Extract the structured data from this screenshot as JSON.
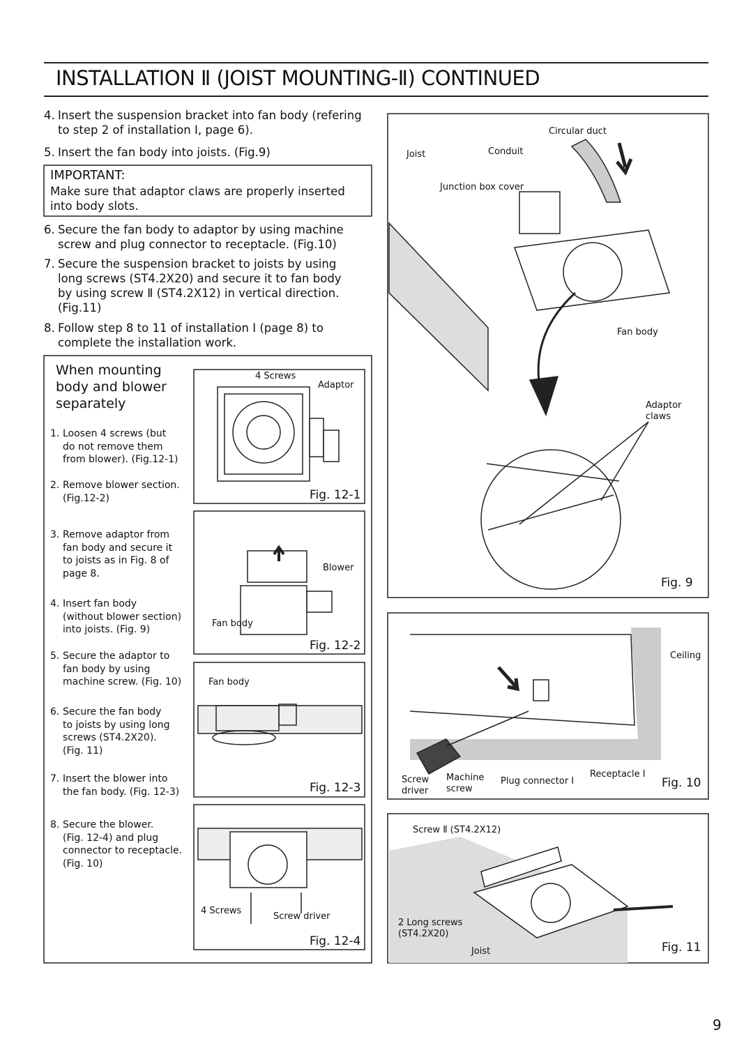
{
  "header": {
    "title": "INSTALLATION Ⅱ (JOIST MOUNTING-Ⅱ) CONTINUED"
  },
  "steps": [
    {
      "number": "4.",
      "text": "Insert the suspension bracket into fan body (refering\nto step 2 of installation Ⅰ, page 6)."
    },
    {
      "number": "5.",
      "text": "Insert the fan body into joists. (Fig.9)"
    }
  ],
  "important": {
    "label": "IMPORTANT:",
    "text": "Make sure that adaptor claws are properly inserted\ninto body slots."
  },
  "steps_after": [
    {
      "number": "6.",
      "text": "Secure the fan body to adaptor by using machine\nscrew and plug connector to receptacle. (Fig.10)"
    },
    {
      "number": "7.",
      "text": "Secure the suspension bracket to joists by using\nlong screws (ST4.2X20) and secure it to fan body\nby using screw Ⅱ (ST4.2X12) in vertical direction.\n(Fig.11)"
    },
    {
      "number": "8.",
      "text": "Follow step 8 to 11 of installation Ⅰ (page 8) to\ncomplete the installation work."
    }
  ],
  "separate": {
    "title": "When mounting\nbody and blower\nseparately",
    "steps": [
      {
        "number": "1.",
        "text": "Loosen 4 screws (but\ndo not remove them\nfrom blower). (Fig.12-1)"
      },
      {
        "number": "2.",
        "text": "Remove blower section.\n(Fig.12-2)"
      },
      {
        "number": "3.",
        "text": "Remove adaptor from\nfan body and secure it\nto joists as in Fig. 8 of\npage 8."
      },
      {
        "number": "4.",
        "text": "Insert fan body\n(without blower section)\ninto joists. (Fig. 9)"
      },
      {
        "number": "5.",
        "text": "Secure the adaptor to\nfan body by using\nmachine screw. (Fig. 10)"
      },
      {
        "number": "6.",
        "text": "Secure the fan body\nto joists by using long\nscrews (ST4.2X20).\n(Fig. 11)"
      },
      {
        "number": "7.",
        "text": "Insert the blower into\nthe fan body. (Fig. 12-3)"
      },
      {
        "number": "8.",
        "text": "Secure the blower.\n(Fig. 12-4) and plug\nconnector to receptacle.\n(Fig. 10)"
      }
    ],
    "figures": [
      {
        "caption": "Fig. 12-1",
        "labels": [
          "4 Screws",
          "Adaptor"
        ]
      },
      {
        "caption": "Fig. 12-2",
        "labels": [
          "Blower",
          "Fan body"
        ]
      },
      {
        "caption": "Fig. 12-3",
        "labels": [
          "Fan body"
        ]
      },
      {
        "caption": "Fig. 12-4",
        "labels": [
          "4 Screws",
          "Screw driver"
        ]
      }
    ]
  },
  "figures": [
    {
      "caption": "Fig. 9",
      "labels": [
        "Circular duct",
        "Joist",
        "Conduit",
        "Junction box cover",
        "Fan body",
        "Adaptor\nclaws"
      ]
    },
    {
      "caption": "Fig. 10",
      "labels": [
        "Ceiling",
        "Screw\ndriver",
        "Machine\nscrew",
        "Plug connector Ⅰ",
        "Receptacle Ⅰ"
      ]
    },
    {
      "caption": "Fig. 11",
      "labels": [
        "Screw Ⅱ (ST4.2X12)",
        "2 Long screws\n(ST4.2X20)",
        "Joist"
      ]
    }
  ],
  "page_number": "9"
}
